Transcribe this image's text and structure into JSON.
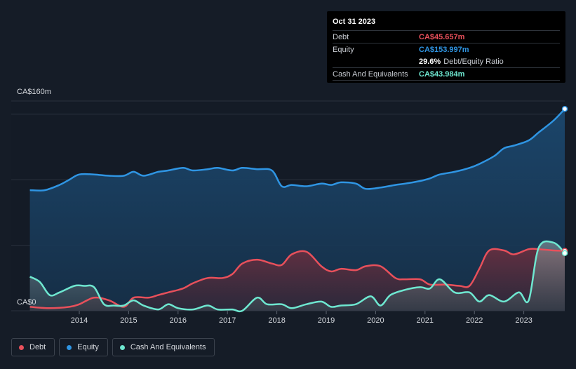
{
  "tooltip": {
    "date": "Oct 31 2023",
    "debt_label": "Debt",
    "debt_value": "CA$45.657m",
    "equity_label": "Equity",
    "equity_value": "CA$153.997m",
    "ratio_value": "29.6%",
    "ratio_label": "Debt/Equity Ratio",
    "cash_label": "Cash And Equivalents",
    "cash_value": "CA$43.984m"
  },
  "legend": [
    {
      "label": "Debt",
      "color": "#e8505b"
    },
    {
      "label": "Equity",
      "color": "#2f95e3"
    },
    {
      "label": "Cash And Equivalents",
      "color": "#6ee7d0"
    }
  ],
  "chart_data": {
    "type": "area",
    "ylim": [
      0,
      160
    ],
    "y_ticks": [
      0,
      50,
      100,
      150
    ],
    "y_tick_labels": [
      "CA$0",
      "CA$160m"
    ],
    "x_tick_labels": [
      "2014",
      "2015",
      "2016",
      "2017",
      "2018",
      "2019",
      "2020",
      "2021",
      "2022",
      "2023"
    ],
    "x_range": [
      2012.9,
      2023.9
    ],
    "series": [
      {
        "name": "Debt",
        "color": "#e8505b",
        "x": [
          2013.0,
          2013.4,
          2013.8,
          2014.0,
          2014.3,
          2014.6,
          2014.9,
          2015.1,
          2015.4,
          2015.6,
          2015.8,
          2016.1,
          2016.3,
          2016.6,
          2016.9,
          2017.1,
          2017.3,
          2017.6,
          2017.9,
          2018.1,
          2018.3,
          2018.6,
          2018.9,
          2019.1,
          2019.3,
          2019.6,
          2019.8,
          2020.1,
          2020.4,
          2020.6,
          2020.9,
          2021.1,
          2021.4,
          2021.7,
          2021.9,
          2022.1,
          2022.3,
          2022.6,
          2022.8,
          2023.1,
          2023.3,
          2023.6,
          2023.83
        ],
        "values": [
          3,
          2,
          3,
          5,
          10,
          8,
          3,
          10,
          10,
          12,
          14,
          17,
          21,
          25,
          25,
          28,
          36,
          39,
          36,
          35,
          43,
          45,
          34,
          30,
          32,
          31,
          34,
          34,
          25,
          24,
          24,
          20,
          20,
          19,
          19,
          32,
          46,
          46,
          43,
          47,
          47,
          46,
          45.7
        ]
      },
      {
        "name": "Equity",
        "color": "#2f95e3",
        "x": [
          2013.0,
          2013.3,
          2013.6,
          2013.8,
          2014.0,
          2014.3,
          2014.6,
          2014.9,
          2015.1,
          2015.3,
          2015.6,
          2015.8,
          2016.1,
          2016.3,
          2016.6,
          2016.8,
          2017.1,
          2017.3,
          2017.6,
          2017.9,
          2018.1,
          2018.3,
          2018.6,
          2018.9,
          2019.1,
          2019.3,
          2019.6,
          2019.8,
          2020.1,
          2020.4,
          2020.6,
          2020.9,
          2021.1,
          2021.3,
          2021.6,
          2021.9,
          2022.1,
          2022.4,
          2022.6,
          2022.8,
          2023.1,
          2023.3,
          2023.6,
          2023.83
        ],
        "values": [
          92,
          92,
          96,
          100,
          104,
          104,
          103,
          103,
          106,
          103,
          106,
          107,
          109,
          107,
          108,
          109,
          107,
          109,
          108,
          107,
          95,
          96,
          95,
          97,
          96,
          98,
          97,
          93,
          94,
          96,
          97,
          99,
          101,
          104,
          106,
          109,
          112,
          118,
          124,
          126,
          130,
          136,
          145,
          154
        ]
      },
      {
        "name": "Cash And Equivalents",
        "color": "#6ee7d0",
        "x": [
          2013.0,
          2013.2,
          2013.4,
          2013.6,
          2013.9,
          2014.1,
          2014.3,
          2014.5,
          2014.7,
          2014.9,
          2015.1,
          2015.3,
          2015.6,
          2015.8,
          2016.0,
          2016.3,
          2016.6,
          2016.8,
          2017.1,
          2017.3,
          2017.6,
          2017.8,
          2018.1,
          2018.3,
          2018.6,
          2018.9,
          2019.1,
          2019.3,
          2019.6,
          2019.9,
          2020.1,
          2020.3,
          2020.6,
          2020.9,
          2021.1,
          2021.3,
          2021.6,
          2021.9,
          2022.1,
          2022.3,
          2022.6,
          2022.9,
          2023.1,
          2023.3,
          2023.6,
          2023.83
        ],
        "values": [
          26,
          22,
          12,
          14,
          19,
          19,
          18,
          5,
          4,
          4,
          8,
          4,
          1,
          5,
          2,
          1,
          4,
          1,
          1,
          0,
          10,
          5,
          5,
          2,
          5,
          7,
          3,
          4,
          5,
          11,
          4,
          12,
          16,
          18,
          17,
          24,
          14,
          14,
          7,
          12,
          7,
          14,
          8,
          48,
          52,
          44
        ]
      }
    ]
  }
}
